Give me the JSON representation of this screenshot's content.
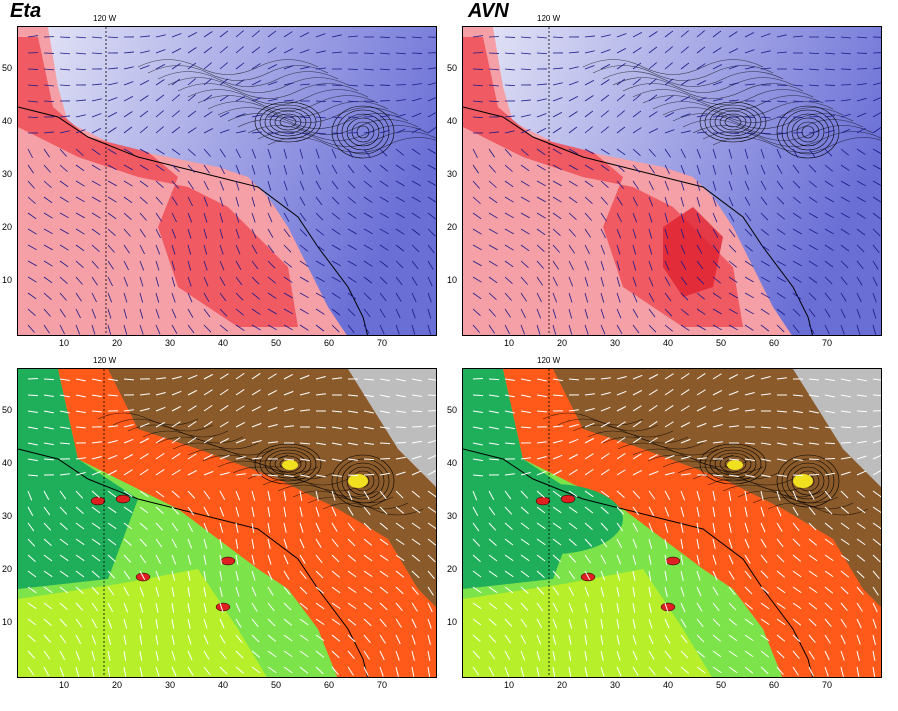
{
  "panels": [
    {
      "title": "Eta",
      "lon_label": "120 W"
    },
    {
      "title": "AVN",
      "lon_label": "120 W"
    },
    {
      "title": "",
      "lon_label": "120 W"
    },
    {
      "title": "",
      "lon_label": "120 W"
    }
  ],
  "axes": {
    "x_ticks": [
      "10",
      "20",
      "30",
      "40",
      "50",
      "60",
      "70"
    ],
    "y_ticks": [
      "50",
      "40",
      "30",
      "20",
      "10"
    ]
  },
  "colors": {
    "blue_field": "#6a6fd6",
    "red_field": "#ee4d57",
    "green_field": "#22c74a",
    "orange_field": "#ff5a1a",
    "brown_field": "#8a5a2a",
    "grey_field": "#bdbdbd",
    "vector_dark": "#1a1a8a",
    "vector_white": "#ffffff"
  }
}
